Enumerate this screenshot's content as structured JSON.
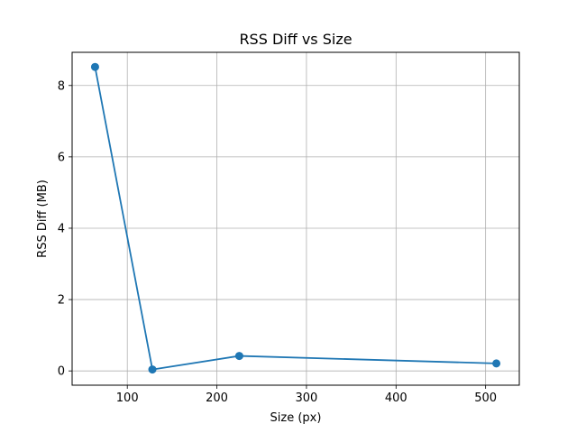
{
  "chart_data": {
    "type": "line",
    "title": "RSS Diff vs Size",
    "xlabel": "Size (px)",
    "ylabel": "RSS Diff (MB)",
    "xlim": [
      38.4,
      537.6
    ],
    "ylim": [
      -0.4,
      8.93
    ],
    "xticks": [
      100,
      200,
      300,
      400,
      500
    ],
    "yticks": [
      0,
      2,
      4,
      6,
      8
    ],
    "grid": true,
    "series": [
      {
        "color": "#1f77b4",
        "marker": "circle",
        "points": [
          {
            "x": 64,
            "y": 8.52
          },
          {
            "x": 128,
            "y": 0.04
          },
          {
            "x": 225,
            "y": 0.42
          },
          {
            "x": 512,
            "y": 0.21
          }
        ]
      }
    ]
  }
}
